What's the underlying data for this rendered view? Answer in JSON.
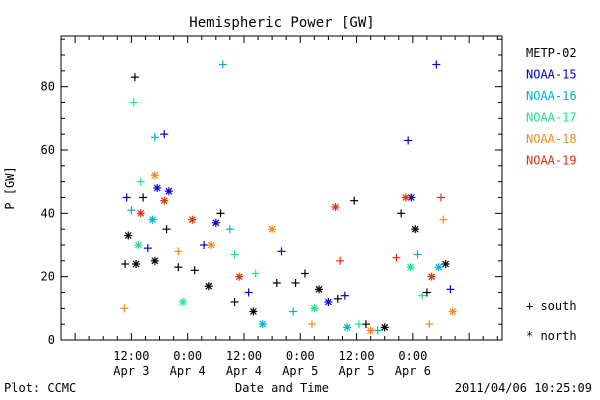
{
  "chart_data": {
    "type": "scatter",
    "title": "Hemispheric Power [GW]",
    "ylabel": "P [GW]",
    "xlabel": "Date and Time",
    "xlim": [
      "2011-04-02T21:00",
      "2011-04-06T19:00"
    ],
    "ylim": [
      0,
      96
    ],
    "yticks": [
      0,
      20,
      40,
      60,
      80
    ],
    "xticks": [
      {
        "time": "2011-04-03T12:00",
        "line1": "12:00",
        "line2": "Apr 3"
      },
      {
        "time": "2011-04-04T00:00",
        "line1": "0:00",
        "line2": "Apr 4"
      },
      {
        "time": "2011-04-04T12:00",
        "line1": "12:00",
        "line2": "Apr 4"
      },
      {
        "time": "2011-04-05T00:00",
        "line1": "0:00",
        "line2": "Apr 5"
      },
      {
        "time": "2011-04-05T12:00",
        "line1": "12:00",
        "line2": "Apr 5"
      },
      {
        "time": "2011-04-06T00:00",
        "line1": "0:00",
        "line2": "Apr 6"
      }
    ],
    "legend_position": "right",
    "markers": {
      "south": "+",
      "north": "*"
    },
    "marker_legend": [
      {
        "symbol": "+",
        "label": "south"
      },
      {
        "symbol": "*",
        "label": "north"
      }
    ],
    "series": [
      {
        "name": "METP-02",
        "color": "#000000",
        "points": [
          {
            "t": "2011-04-03T10:40",
            "v": 24,
            "h": "south"
          },
          {
            "t": "2011-04-03T11:20",
            "v": 33,
            "h": "north"
          },
          {
            "t": "2011-04-03T12:45",
            "v": 83,
            "h": "south"
          },
          {
            "t": "2011-04-03T14:30",
            "v": 45,
            "h": "south"
          },
          {
            "t": "2011-04-03T13:00",
            "v": 24,
            "h": "north"
          },
          {
            "t": "2011-04-03T17:00",
            "v": 25,
            "h": "north"
          },
          {
            "t": "2011-04-03T19:30",
            "v": 35,
            "h": "south"
          },
          {
            "t": "2011-04-03T22:00",
            "v": 23,
            "h": "south"
          },
          {
            "t": "2011-04-04T01:30",
            "v": 22,
            "h": "south"
          },
          {
            "t": "2011-04-04T04:30",
            "v": 17,
            "h": "north"
          },
          {
            "t": "2011-04-04T07:00",
            "v": 40,
            "h": "south"
          },
          {
            "t": "2011-04-04T10:00",
            "v": 12,
            "h": "south"
          },
          {
            "t": "2011-04-04T14:00",
            "v": 9,
            "h": "north"
          },
          {
            "t": "2011-04-04T19:00",
            "v": 18,
            "h": "south"
          },
          {
            "t": "2011-04-04T23:00",
            "v": 18,
            "h": "south"
          },
          {
            "t": "2011-04-05T01:00",
            "v": 21,
            "h": "south"
          },
          {
            "t": "2011-04-05T04:00",
            "v": 16,
            "h": "north"
          },
          {
            "t": "2011-04-05T08:00",
            "v": 13,
            "h": "south"
          },
          {
            "t": "2011-04-05T11:30",
            "v": 44,
            "h": "south"
          },
          {
            "t": "2011-04-05T14:00",
            "v": 5,
            "h": "south"
          },
          {
            "t": "2011-04-05T18:00",
            "v": 4,
            "h": "north"
          },
          {
            "t": "2011-04-05T21:30",
            "v": 40,
            "h": "south"
          },
          {
            "t": "2011-04-06T00:30",
            "v": 35,
            "h": "north"
          },
          {
            "t": "2011-04-06T03:00",
            "v": 15,
            "h": "south"
          },
          {
            "t": "2011-04-06T07:00",
            "v": 24,
            "h": "north"
          }
        ]
      },
      {
        "name": "NOAA-15",
        "color": "#0000cc",
        "points": [
          {
            "t": "2011-04-03T11:00",
            "v": 45,
            "h": "south"
          },
          {
            "t": "2011-04-03T15:30",
            "v": 29,
            "h": "south"
          },
          {
            "t": "2011-04-03T17:30",
            "v": 48,
            "h": "north"
          },
          {
            "t": "2011-04-03T19:00",
            "v": 65,
            "h": "south"
          },
          {
            "t": "2011-04-03T20:00",
            "v": 47,
            "h": "north"
          },
          {
            "t": "2011-04-04T03:30",
            "v": 30,
            "h": "south"
          },
          {
            "t": "2011-04-04T06:00",
            "v": 37,
            "h": "north"
          },
          {
            "t": "2011-04-04T13:00",
            "v": 15,
            "h": "south"
          },
          {
            "t": "2011-04-04T20:00",
            "v": 28,
            "h": "south"
          },
          {
            "t": "2011-04-05T06:00",
            "v": 12,
            "h": "north"
          },
          {
            "t": "2011-04-05T09:30",
            "v": 14,
            "h": "south"
          },
          {
            "t": "2011-04-05T23:00",
            "v": 63,
            "h": "south"
          },
          {
            "t": "2011-04-05T23:40",
            "v": 45,
            "h": "north"
          },
          {
            "t": "2011-04-06T05:00",
            "v": 87,
            "h": "south"
          },
          {
            "t": "2011-04-06T08:00",
            "v": 16,
            "h": "south"
          }
        ]
      },
      {
        "name": "NOAA-16",
        "color": "#00b0d8",
        "points": [
          {
            "t": "2011-04-03T12:00",
            "v": 41,
            "h": "south"
          },
          {
            "t": "2011-04-03T17:00",
            "v": 64,
            "h": "south"
          },
          {
            "t": "2011-04-03T16:30",
            "v": 38,
            "h": "north"
          },
          {
            "t": "2011-04-04T07:30",
            "v": 87,
            "h": "south"
          },
          {
            "t": "2011-04-04T09:00",
            "v": 35,
            "h": "south"
          },
          {
            "t": "2011-04-04T16:00",
            "v": 5,
            "h": "north"
          },
          {
            "t": "2011-04-04T22:30",
            "v": 9,
            "h": "south"
          },
          {
            "t": "2011-04-05T10:00",
            "v": 4,
            "h": "north"
          },
          {
            "t": "2011-04-05T16:30",
            "v": 3,
            "h": "south"
          },
          {
            "t": "2011-04-06T01:00",
            "v": 27,
            "h": "south"
          },
          {
            "t": "2011-04-06T05:30",
            "v": 23,
            "h": "north"
          }
        ]
      },
      {
        "name": "NOAA-17",
        "color": "#22e08a",
        "points": [
          {
            "t": "2011-04-03T12:30",
            "v": 75,
            "h": "south"
          },
          {
            "t": "2011-04-03T14:00",
            "v": 50,
            "h": "south"
          },
          {
            "t": "2011-04-03T13:30",
            "v": 30,
            "h": "north"
          },
          {
            "t": "2011-04-03T23:00",
            "v": 12,
            "h": "north"
          },
          {
            "t": "2011-04-04T10:00",
            "v": 27,
            "h": "south"
          },
          {
            "t": "2011-04-04T14:30",
            "v": 21,
            "h": "south"
          },
          {
            "t": "2011-04-05T03:00",
            "v": 10,
            "h": "north"
          },
          {
            "t": "2011-04-05T12:30",
            "v": 5,
            "h": "south"
          },
          {
            "t": "2011-04-05T23:30",
            "v": 23,
            "h": "north"
          },
          {
            "t": "2011-04-06T02:00",
            "v": 14,
            "h": "south"
          }
        ]
      },
      {
        "name": "NOAA-18",
        "color": "#f08c18",
        "points": [
          {
            "t": "2011-04-03T17:00",
            "v": 52,
            "h": "north"
          },
          {
            "t": "2011-04-03T10:30",
            "v": 10,
            "h": "south"
          },
          {
            "t": "2011-04-03T22:00",
            "v": 28,
            "h": "south"
          },
          {
            "t": "2011-04-04T05:00",
            "v": 30,
            "h": "north"
          },
          {
            "t": "2011-04-04T18:00",
            "v": 35,
            "h": "north"
          },
          {
            "t": "2011-04-05T02:30",
            "v": 5,
            "h": "south"
          },
          {
            "t": "2011-04-05T15:00",
            "v": 3,
            "h": "north"
          },
          {
            "t": "2011-04-06T03:30",
            "v": 5,
            "h": "south"
          },
          {
            "t": "2011-04-06T06:30",
            "v": 38,
            "h": "south"
          },
          {
            "t": "2011-04-06T08:30",
            "v": 9,
            "h": "north"
          }
        ]
      },
      {
        "name": "NOAA-19",
        "color": "#e03010",
        "points": [
          {
            "t": "2011-04-03T14:00",
            "v": 40,
            "h": "north"
          },
          {
            "t": "2011-04-03T19:00",
            "v": 44,
            "h": "north"
          },
          {
            "t": "2011-04-04T01:00",
            "v": 38,
            "h": "north"
          },
          {
            "t": "2011-04-04T11:00",
            "v": 20,
            "h": "north"
          },
          {
            "t": "2011-04-05T07:30",
            "v": 42,
            "h": "north"
          },
          {
            "t": "2011-04-05T08:30",
            "v": 25,
            "h": "south"
          },
          {
            "t": "2011-04-05T22:30",
            "v": 45,
            "h": "north"
          },
          {
            "t": "2011-04-05T20:30",
            "v": 26,
            "h": "south"
          },
          {
            "t": "2011-04-06T06:00",
            "v": 45,
            "h": "south"
          },
          {
            "t": "2011-04-06T04:00",
            "v": 20,
            "h": "north"
          }
        ]
      }
    ]
  },
  "footer": {
    "left": "Plot: CCMC",
    "right": "2011/04/06 10:25:09"
  }
}
